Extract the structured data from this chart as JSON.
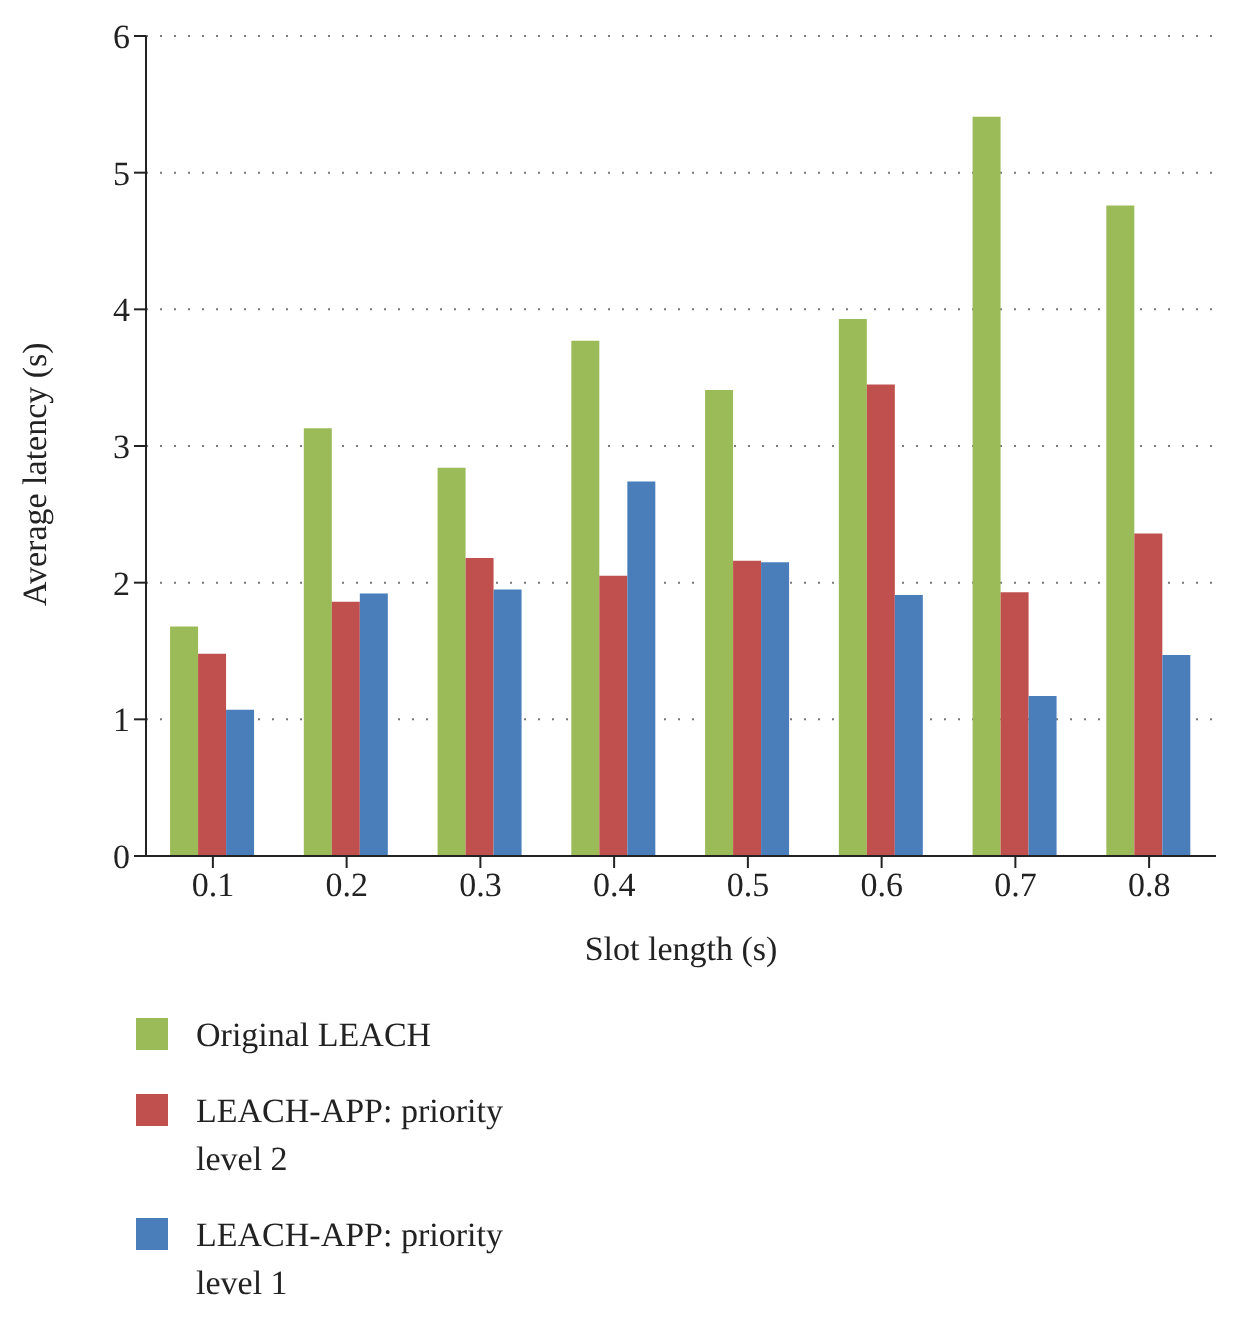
{
  "chart_data": {
    "type": "bar",
    "xlabel": "Slot length (s)",
    "ylabel": "Average latency (s)",
    "categories": [
      "0.1",
      "0.2",
      "0.3",
      "0.4",
      "0.5",
      "0.6",
      "0.7",
      "0.8"
    ],
    "series": [
      {
        "name": "Original LEACH",
        "color": "#9bbb59",
        "values": [
          1.68,
          3.13,
          2.84,
          3.77,
          3.41,
          3.93,
          5.41,
          4.76
        ]
      },
      {
        "name": "LEACH-APP: priority level 2",
        "color": "#c0504d",
        "values": [
          1.48,
          1.86,
          2.18,
          2.05,
          2.16,
          3.45,
          1.93,
          2.36
        ]
      },
      {
        "name": "LEACH-APP: priority level 1",
        "color": "#4a7ebb",
        "values": [
          1.07,
          1.92,
          1.95,
          2.74,
          2.15,
          1.91,
          1.17,
          1.47
        ]
      }
    ],
    "ylim": [
      0,
      6
    ],
    "yticks": [
      0,
      1,
      2,
      3,
      4,
      5,
      6
    ],
    "grid": "y",
    "legend": "bottom"
  }
}
